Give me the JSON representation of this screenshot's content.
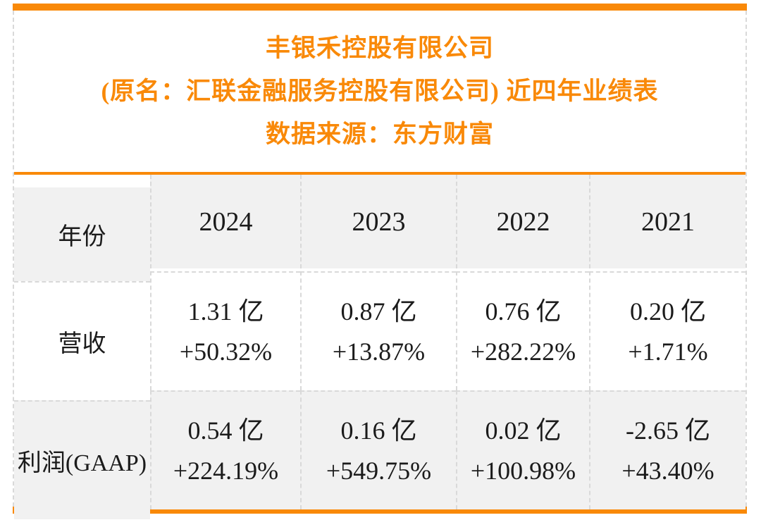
{
  "colors": {
    "accent_orange": "#F98908",
    "row_shade_gray": "#F1F1F1",
    "grid_dash_gray": "#D9D9D9",
    "text_dark": "#1B1B1B",
    "background": "#FFFFFF"
  },
  "chart_data": {
    "type": "table",
    "title": "丰银禾控股有限公司",
    "subtitle": "(原名：汇联金融服务控股有限公司) 近四年业绩表",
    "source": "数据来源：东方财富",
    "columns": [
      "年份",
      "2024",
      "2023",
      "2022",
      "2021"
    ],
    "rows": [
      {
        "label": "营收",
        "cells": [
          {
            "value": "1.31 亿",
            "change": "+50.32%"
          },
          {
            "value": "0.87 亿",
            "change": "+13.87%"
          },
          {
            "value": "0.76 亿",
            "change": "+282.22%"
          },
          {
            "value": "0.20 亿",
            "change": "+1.71%"
          }
        ]
      },
      {
        "label": "利润(GAAP)",
        "cells": [
          {
            "value": "0.54 亿",
            "change": "+224.19%"
          },
          {
            "value": "0.16 亿",
            "change": "+549.75%"
          },
          {
            "value": "0.02 亿",
            "change": "+100.98%"
          },
          {
            "value": "-2.65 亿",
            "change": "+43.40%"
          }
        ]
      }
    ],
    "layout": {
      "legend": false,
      "grid": "dashed",
      "header_fill": "shaded",
      "row_fills": [
        "white",
        "shaded"
      ]
    }
  }
}
